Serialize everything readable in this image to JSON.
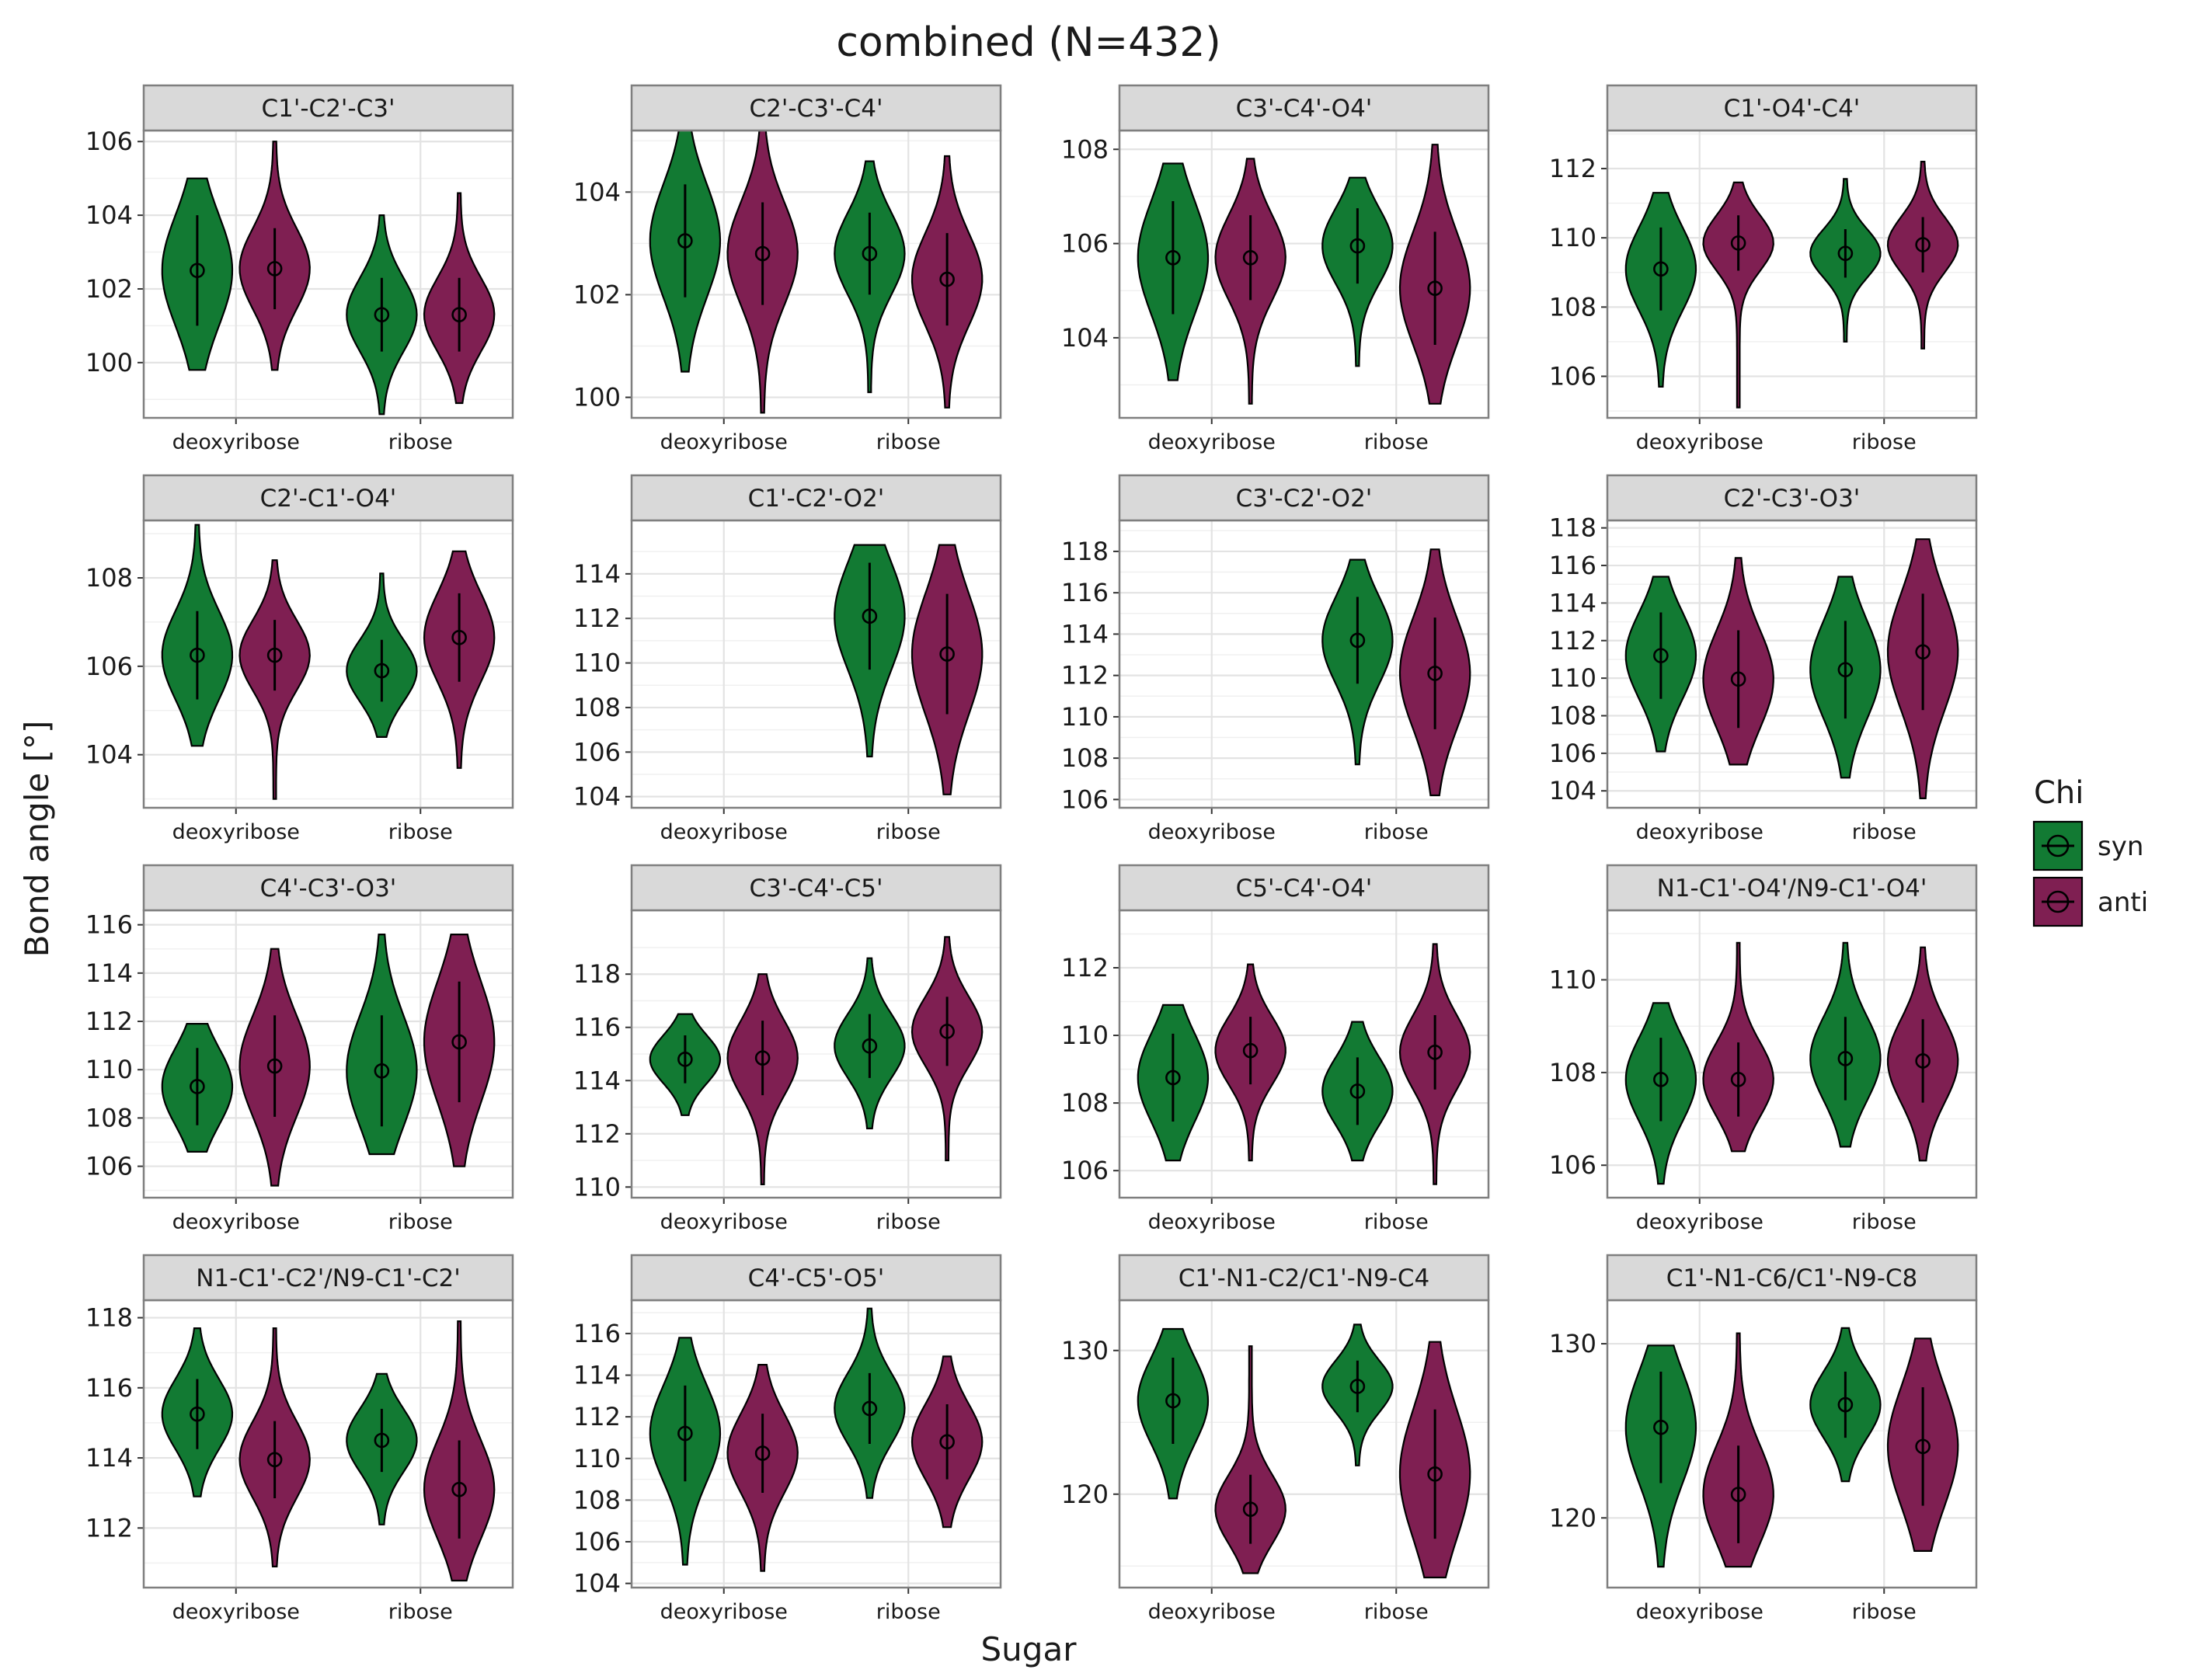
{
  "chart_data": {
    "type": "violin",
    "title": "combined (N=432)",
    "xlabel": "Sugar",
    "ylabel": "Bond angle [°]",
    "categories": [
      "deoxyribose",
      "ribose"
    ],
    "legend": {
      "title": "Chi",
      "placement": "right",
      "entries": [
        {
          "name": "syn",
          "color": "#127a33"
        },
        {
          "name": "anti",
          "color": "#7f1f52"
        }
      ]
    },
    "grid": true,
    "panels": [
      {
        "label": "C1'-C2'-C3'",
        "ylim": [
          98.5,
          106.3
        ],
        "ticks": [
          100,
          102,
          104,
          106
        ],
        "groups": [
          {
            "sugar": "deoxyribose",
            "chi": "syn",
            "mean": 102.5,
            "sd": 1.5,
            "min": 99.8,
            "max": 105.0
          },
          {
            "sugar": "deoxyribose",
            "chi": "anti",
            "mean": 102.55,
            "sd": 1.1,
            "min": 99.8,
            "max": 106.0
          },
          {
            "sugar": "ribose",
            "chi": "syn",
            "mean": 101.3,
            "sd": 1.0,
            "min": 98.6,
            "max": 104.0
          },
          {
            "sugar": "ribose",
            "chi": "anti",
            "mean": 101.3,
            "sd": 1.0,
            "min": 98.9,
            "max": 104.6
          }
        ]
      },
      {
        "label": "C2'-C3'-C4'",
        "ylim": [
          99.6,
          105.2
        ],
        "ticks": [
          100,
          102,
          104
        ],
        "groups": [
          {
            "sugar": "deoxyribose",
            "chi": "syn",
            "mean": 103.05,
            "sd": 1.1,
            "min": 100.5,
            "max": 105.4
          },
          {
            "sugar": "deoxyribose",
            "chi": "anti",
            "mean": 102.8,
            "sd": 1.0,
            "min": 99.7,
            "max": 105.4
          },
          {
            "sugar": "ribose",
            "chi": "syn",
            "mean": 102.8,
            "sd": 0.8,
            "min": 100.1,
            "max": 104.6
          },
          {
            "sugar": "ribose",
            "chi": "anti",
            "mean": 102.3,
            "sd": 0.9,
            "min": 99.8,
            "max": 104.7
          }
        ]
      },
      {
        "label": "C3'-C4'-O4'",
        "ylim": [
          102.3,
          108.4
        ],
        "ticks": [
          104,
          106,
          108
        ],
        "groups": [
          {
            "sugar": "deoxyribose",
            "chi": "syn",
            "mean": 105.7,
            "sd": 1.2,
            "min": 103.1,
            "max": 107.7
          },
          {
            "sugar": "deoxyribose",
            "chi": "anti",
            "mean": 105.7,
            "sd": 0.9,
            "min": 102.6,
            "max": 107.8
          },
          {
            "sugar": "ribose",
            "chi": "syn",
            "mean": 105.95,
            "sd": 0.8,
            "min": 103.4,
            "max": 107.4
          },
          {
            "sugar": "ribose",
            "chi": "anti",
            "mean": 105.05,
            "sd": 1.2,
            "min": 102.6,
            "max": 108.1
          }
        ]
      },
      {
        "label": "C1'-O4'-C4'",
        "ylim": [
          104.8,
          113.1
        ],
        "ticks": [
          106,
          108,
          110,
          112
        ],
        "groups": [
          {
            "sugar": "deoxyribose",
            "chi": "syn",
            "mean": 109.1,
            "sd": 1.2,
            "min": 105.7,
            "max": 111.3
          },
          {
            "sugar": "deoxyribose",
            "chi": "anti",
            "mean": 109.85,
            "sd": 0.8,
            "min": 105.1,
            "max": 111.6
          },
          {
            "sugar": "ribose",
            "chi": "syn",
            "mean": 109.55,
            "sd": 0.7,
            "min": 107.0,
            "max": 111.7
          },
          {
            "sugar": "ribose",
            "chi": "anti",
            "mean": 109.8,
            "sd": 0.8,
            "min": 106.8,
            "max": 112.2
          }
        ]
      },
      {
        "label": "C2'-C1'-O4'",
        "ylim": [
          102.8,
          109.3
        ],
        "ticks": [
          104,
          106,
          108
        ],
        "groups": [
          {
            "sugar": "deoxyribose",
            "chi": "syn",
            "mean": 106.25,
            "sd": 1.0,
            "min": 104.2,
            "max": 109.2
          },
          {
            "sugar": "deoxyribose",
            "chi": "anti",
            "mean": 106.25,
            "sd": 0.8,
            "min": 103.0,
            "max": 108.4
          },
          {
            "sugar": "ribose",
            "chi": "syn",
            "mean": 105.9,
            "sd": 0.7,
            "min": 104.4,
            "max": 108.1
          },
          {
            "sugar": "ribose",
            "chi": "anti",
            "mean": 106.65,
            "sd": 1.0,
            "min": 103.7,
            "max": 108.6
          }
        ]
      },
      {
        "label": "C1'-C2'-O2'",
        "ylim": [
          103.5,
          116.4
        ],
        "ticks": [
          104,
          106,
          108,
          110,
          112,
          114
        ],
        "groups": [
          {
            "sugar": "ribose",
            "chi": "syn",
            "mean": 112.1,
            "sd": 2.4,
            "min": 105.8,
            "max": 115.3
          },
          {
            "sugar": "ribose",
            "chi": "anti",
            "mean": 110.4,
            "sd": 2.7,
            "min": 104.1,
            "max": 115.3
          }
        ]
      },
      {
        "label": "C3'-C2'-O2'",
        "ylim": [
          105.6,
          119.5
        ],
        "ticks": [
          106,
          108,
          110,
          112,
          114,
          116,
          118
        ],
        "groups": [
          {
            "sugar": "ribose",
            "chi": "syn",
            "mean": 113.7,
            "sd": 2.1,
            "min": 107.7,
            "max": 117.6
          },
          {
            "sugar": "ribose",
            "chi": "anti",
            "mean": 112.1,
            "sd": 2.7,
            "min": 106.2,
            "max": 118.1
          }
        ]
      },
      {
        "label": "C2'-C3'-O3'",
        "ylim": [
          103.1,
          118.4
        ],
        "ticks": [
          104,
          106,
          108,
          110,
          112,
          114,
          116,
          118
        ],
        "groups": [
          {
            "sugar": "deoxyribose",
            "chi": "syn",
            "mean": 111.2,
            "sd": 2.3,
            "min": 106.1,
            "max": 115.4
          },
          {
            "sugar": "deoxyribose",
            "chi": "anti",
            "mean": 109.95,
            "sd": 2.6,
            "min": 105.4,
            "max": 116.4
          },
          {
            "sugar": "ribose",
            "chi": "syn",
            "mean": 110.45,
            "sd": 2.6,
            "min": 104.7,
            "max": 115.4
          },
          {
            "sugar": "ribose",
            "chi": "anti",
            "mean": 111.4,
            "sd": 3.1,
            "min": 103.6,
            "max": 117.4
          }
        ]
      },
      {
        "label": "C4'-C3'-O3'",
        "ylim": [
          104.7,
          116.6
        ],
        "ticks": [
          106,
          108,
          110,
          112,
          114,
          116
        ],
        "groups": [
          {
            "sugar": "deoxyribose",
            "chi": "syn",
            "mean": 109.3,
            "sd": 1.6,
            "min": 106.6,
            "max": 111.9
          },
          {
            "sugar": "deoxyribose",
            "chi": "anti",
            "mean": 110.15,
            "sd": 2.1,
            "min": 105.2,
            "max": 115.0
          },
          {
            "sugar": "ribose",
            "chi": "syn",
            "mean": 109.95,
            "sd": 2.3,
            "min": 106.5,
            "max": 115.6
          },
          {
            "sugar": "ribose",
            "chi": "anti",
            "mean": 111.15,
            "sd": 2.5,
            "min": 106.0,
            "max": 115.6
          }
        ]
      },
      {
        "label": "C3'-C4'-C5'",
        "ylim": [
          109.6,
          120.4
        ],
        "ticks": [
          110,
          112,
          114,
          116,
          118
        ],
        "groups": [
          {
            "sugar": "deoxyribose",
            "chi": "syn",
            "mean": 114.8,
            "sd": 0.9,
            "min": 112.7,
            "max": 116.5
          },
          {
            "sugar": "deoxyribose",
            "chi": "anti",
            "mean": 114.85,
            "sd": 1.4,
            "min": 110.1,
            "max": 118.0
          },
          {
            "sugar": "ribose",
            "chi": "syn",
            "mean": 115.3,
            "sd": 1.2,
            "min": 112.2,
            "max": 118.6
          },
          {
            "sugar": "ribose",
            "chi": "anti",
            "mean": 115.85,
            "sd": 1.3,
            "min": 111.0,
            "max": 119.4
          }
        ]
      },
      {
        "label": "C5'-C4'-O4'",
        "ylim": [
          105.2,
          113.7
        ],
        "ticks": [
          106,
          108,
          110,
          112
        ],
        "groups": [
          {
            "sugar": "deoxyribose",
            "chi": "syn",
            "mean": 108.75,
            "sd": 1.3,
            "min": 106.3,
            "max": 110.9
          },
          {
            "sugar": "deoxyribose",
            "chi": "anti",
            "mean": 109.55,
            "sd": 1.0,
            "min": 106.3,
            "max": 112.1
          },
          {
            "sugar": "ribose",
            "chi": "syn",
            "mean": 108.35,
            "sd": 1.0,
            "min": 106.3,
            "max": 110.4
          },
          {
            "sugar": "ribose",
            "chi": "anti",
            "mean": 109.5,
            "sd": 1.1,
            "min": 105.6,
            "max": 112.7
          }
        ]
      },
      {
        "label": "N1-C1'-O4'/N9-C1'-O4'",
        "ylim": [
          105.3,
          111.5
        ],
        "ticks": [
          106,
          108,
          110
        ],
        "groups": [
          {
            "sugar": "deoxyribose",
            "chi": "syn",
            "mean": 107.85,
            "sd": 0.9,
            "min": 105.6,
            "max": 109.5
          },
          {
            "sugar": "deoxyribose",
            "chi": "anti",
            "mean": 107.85,
            "sd": 0.8,
            "min": 106.3,
            "max": 110.8
          },
          {
            "sugar": "ribose",
            "chi": "syn",
            "mean": 108.3,
            "sd": 0.9,
            "min": 106.4,
            "max": 110.8
          },
          {
            "sugar": "ribose",
            "chi": "anti",
            "mean": 108.25,
            "sd": 0.9,
            "min": 106.1,
            "max": 110.7
          }
        ]
      },
      {
        "label": "N1-C1'-C2'/N9-C1'-C2'",
        "ylim": [
          110.3,
          118.5
        ],
        "ticks": [
          112,
          114,
          116,
          118
        ],
        "groups": [
          {
            "sugar": "deoxyribose",
            "chi": "syn",
            "mean": 115.25,
            "sd": 1.0,
            "min": 112.9,
            "max": 117.7
          },
          {
            "sugar": "deoxyribose",
            "chi": "anti",
            "mean": 113.95,
            "sd": 1.1,
            "min": 110.9,
            "max": 117.7
          },
          {
            "sugar": "ribose",
            "chi": "syn",
            "mean": 114.5,
            "sd": 0.9,
            "min": 112.1,
            "max": 116.4
          },
          {
            "sugar": "ribose",
            "chi": "anti",
            "mean": 113.1,
            "sd": 1.4,
            "min": 110.5,
            "max": 117.9
          }
        ]
      },
      {
        "label": "C4'-C5'-O5'",
        "ylim": [
          103.8,
          117.6
        ],
        "ticks": [
          104,
          106,
          108,
          110,
          112,
          114,
          116
        ],
        "groups": [
          {
            "sugar": "deoxyribose",
            "chi": "syn",
            "mean": 111.2,
            "sd": 2.3,
            "min": 104.9,
            "max": 115.8
          },
          {
            "sugar": "deoxyribose",
            "chi": "anti",
            "mean": 110.25,
            "sd": 1.9,
            "min": 104.6,
            "max": 114.5
          },
          {
            "sugar": "ribose",
            "chi": "syn",
            "mean": 112.4,
            "sd": 1.7,
            "min": 108.1,
            "max": 117.2
          },
          {
            "sugar": "ribose",
            "chi": "anti",
            "mean": 110.8,
            "sd": 1.8,
            "min": 106.7,
            "max": 114.9
          }
        ]
      },
      {
        "label": "C1'-N1-C2/C1'-N9-C4",
        "ylim": [
          113.5,
          133.5
        ],
        "ticks": [
          120,
          130
        ],
        "groups": [
          {
            "sugar": "deoxyribose",
            "chi": "syn",
            "mean": 126.5,
            "sd": 3.0,
            "min": 119.7,
            "max": 131.5
          },
          {
            "sugar": "deoxyribose",
            "chi": "anti",
            "mean": 118.95,
            "sd": 2.4,
            "min": 114.5,
            "max": 130.3
          },
          {
            "sugar": "ribose",
            "chi": "syn",
            "mean": 127.5,
            "sd": 1.8,
            "min": 122.0,
            "max": 131.8
          },
          {
            "sugar": "ribose",
            "chi": "anti",
            "mean": 121.4,
            "sd": 4.5,
            "min": 114.2,
            "max": 130.6
          }
        ]
      },
      {
        "label": "C1'-N1-C6/C1'-N9-C8",
        "ylim": [
          116.0,
          132.5
        ],
        "ticks": [
          120,
          130
        ],
        "groups": [
          {
            "sugar": "deoxyribose",
            "chi": "syn",
            "mean": 125.2,
            "sd": 3.2,
            "min": 117.2,
            "max": 129.9
          },
          {
            "sugar": "deoxyribose",
            "chi": "anti",
            "mean": 121.35,
            "sd": 2.8,
            "min": 117.2,
            "max": 130.6
          },
          {
            "sugar": "ribose",
            "chi": "syn",
            "mean": 126.5,
            "sd": 1.9,
            "min": 122.1,
            "max": 130.9
          },
          {
            "sugar": "ribose",
            "chi": "anti",
            "mean": 124.1,
            "sd": 3.4,
            "min": 118.1,
            "max": 130.3
          }
        ]
      }
    ]
  }
}
